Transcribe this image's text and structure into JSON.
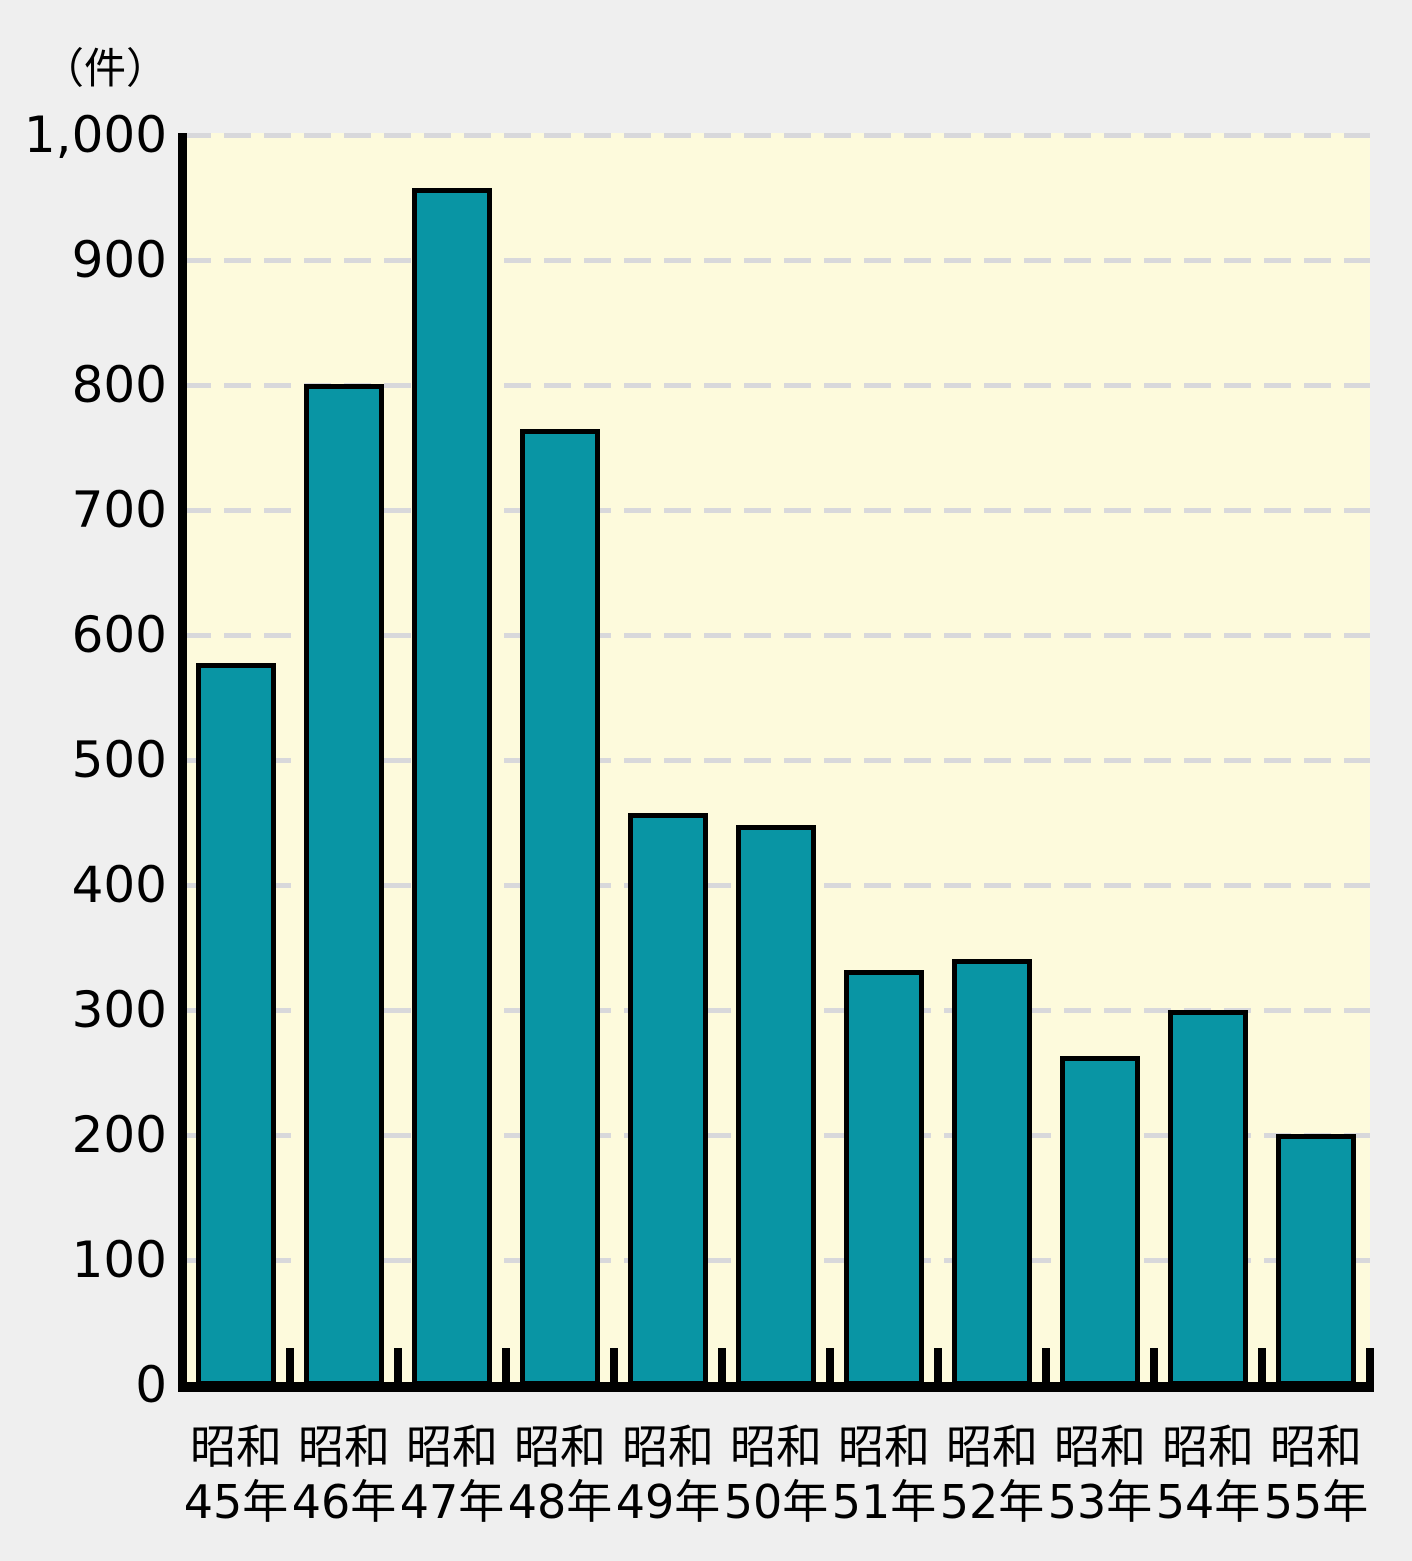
{
  "chart_data": {
    "type": "bar",
    "title": "",
    "unit_label": "（件）",
    "categories": [
      {
        "era": "昭和",
        "year": "45年"
      },
      {
        "era": "昭和",
        "year": "46年"
      },
      {
        "era": "昭和",
        "year": "47年"
      },
      {
        "era": "昭和",
        "year": "48年"
      },
      {
        "era": "昭和",
        "year": "49年"
      },
      {
        "era": "昭和",
        "year": "50年"
      },
      {
        "era": "昭和",
        "year": "51年"
      },
      {
        "era": "昭和",
        "year": "52年"
      },
      {
        "era": "昭和",
        "year": "53年"
      },
      {
        "era": "昭和",
        "year": "54年"
      },
      {
        "era": "昭和",
        "year": "55年"
      }
    ],
    "values": [
      578,
      801,
      958,
      765,
      458,
      448,
      332,
      341,
      263,
      300,
      201
    ],
    "xlabel": "",
    "ylabel": "（件）",
    "ylim": [
      0,
      1000
    ],
    "ytick_values": [
      1000,
      900,
      800,
      700,
      600,
      500,
      400,
      300,
      200,
      100,
      0
    ],
    "ytick_labels": [
      "1,000",
      "900",
      "800",
      "700",
      "600",
      "500",
      "400",
      "300",
      "200",
      "100",
      "0"
    ],
    "grid": "horizontal-dashed",
    "legend": "none",
    "colors": {
      "bar_fill": "#0995a4",
      "bar_border": "#000000",
      "plot_background": "#fdfadc",
      "page_background": "#efefef",
      "gridline": "#d8d8db",
      "axis": "#000000",
      "text": "#000000"
    }
  }
}
